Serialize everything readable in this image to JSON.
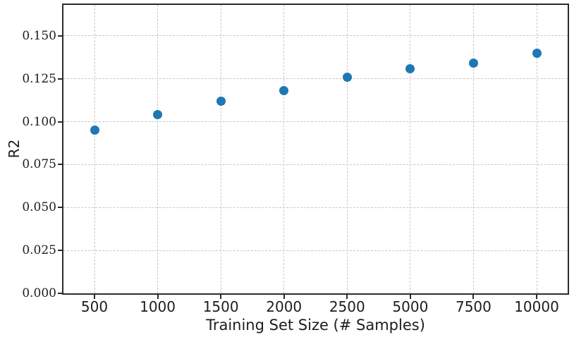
{
  "chart_data": {
    "type": "scatter",
    "title": "",
    "xlabel": "Training Set Size (# Samples)",
    "ylabel": "R2",
    "categories": [
      "500",
      "1000",
      "1500",
      "2000",
      "2500",
      "5000",
      "7500",
      "10000"
    ],
    "values": [
      0.095,
      0.104,
      0.112,
      0.118,
      0.126,
      0.131,
      0.134,
      0.14
    ],
    "yticks": [
      "0.000",
      "0.025",
      "0.050",
      "0.075",
      "0.100",
      "0.125",
      "0.150"
    ],
    "ytick_values": [
      0.0,
      0.025,
      0.05,
      0.075,
      0.1,
      0.125,
      0.15
    ],
    "ylim": [
      0.0,
      0.168
    ],
    "grid": true,
    "grid_style": "dashed",
    "legend": "none",
    "marker_color": "#1f77b4",
    "grid_color": "#c8c8c8",
    "axis_color": "#2b2b2b"
  }
}
